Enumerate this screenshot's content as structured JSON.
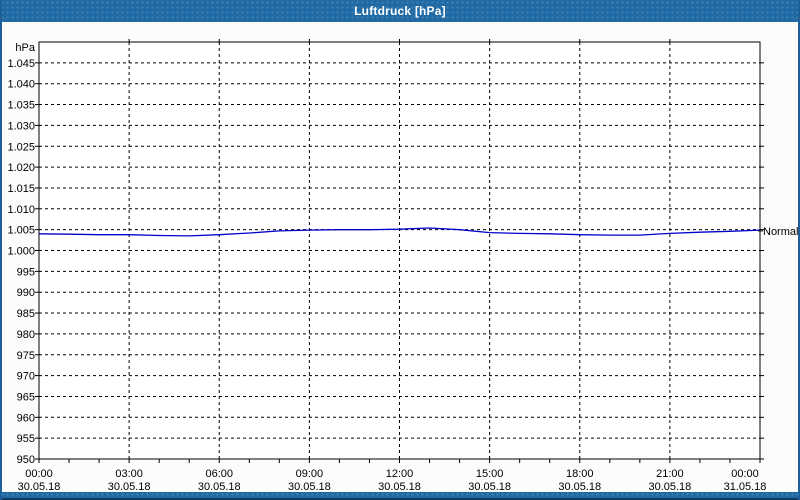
{
  "window": {
    "title": "Luftdruck [hPa]"
  },
  "colors": {
    "titlebar": "#1f6aa5",
    "window_border": "#1d5f98",
    "background": "#fcfdfa",
    "plot_bg": "#ffffff",
    "grid": "#000000",
    "text": "#000000",
    "title_text": "#ffffff",
    "line": "#0000cc"
  },
  "chart_data": {
    "type": "line",
    "title": "Luftdruck [hPa]",
    "ylabel": "hPa",
    "xlabel": "",
    "ylim": [
      950,
      1050
    ],
    "x_hours_range": [
      0,
      24
    ],
    "grid": "dashed",
    "legend_position": "right-annotation",
    "yticks": [
      {
        "v": 1045,
        "label": "1.045"
      },
      {
        "v": 1040,
        "label": "1.040"
      },
      {
        "v": 1035,
        "label": "1.035"
      },
      {
        "v": 1030,
        "label": "1.030"
      },
      {
        "v": 1025,
        "label": "1.025"
      },
      {
        "v": 1020,
        "label": "1.020"
      },
      {
        "v": 1015,
        "label": "1.015"
      },
      {
        "v": 1010,
        "label": "1.010"
      },
      {
        "v": 1005,
        "label": "1.005"
      },
      {
        "v": 1000,
        "label": "1.000"
      },
      {
        "v": 995,
        "label": "995"
      },
      {
        "v": 990,
        "label": "990"
      },
      {
        "v": 985,
        "label": "985"
      },
      {
        "v": 980,
        "label": "980"
      },
      {
        "v": 975,
        "label": "975"
      },
      {
        "v": 970,
        "label": "970"
      },
      {
        "v": 965,
        "label": "965"
      },
      {
        "v": 960,
        "label": "960"
      },
      {
        "v": 955,
        "label": "955"
      },
      {
        "v": 950,
        "label": "950"
      }
    ],
    "xticks": [
      {
        "h": 0,
        "time": "00:00",
        "date": "30.05.18"
      },
      {
        "h": 3,
        "time": "03:00",
        "date": "30.05.18"
      },
      {
        "h": 6,
        "time": "06:00",
        "date": "30.05.18"
      },
      {
        "h": 9,
        "time": "09:00",
        "date": "30.05.18"
      },
      {
        "h": 12,
        "time": "12:00",
        "date": "30.05.18"
      },
      {
        "h": 15,
        "time": "15:00",
        "date": "30.05.18"
      },
      {
        "h": 18,
        "time": "18:00",
        "date": "30.05.18"
      },
      {
        "h": 21,
        "time": "21:00",
        "date": "30.05.18"
      },
      {
        "h": 24,
        "time": "00:00",
        "date": "31.05.18"
      }
    ],
    "series": [
      {
        "name": "Luftdruck",
        "color": "#0000cc",
        "x_hours": [
          0,
          1,
          2,
          3,
          4,
          5,
          6,
          7,
          8,
          9,
          10,
          11,
          12,
          13,
          14,
          15,
          16,
          17,
          18,
          19,
          20,
          21,
          22,
          23,
          24
        ],
        "values": [
          1004.0,
          1003.9,
          1003.8,
          1003.8,
          1003.6,
          1003.5,
          1003.8,
          1004.2,
          1004.7,
          1004.9,
          1005.0,
          1005.0,
          1005.1,
          1005.4,
          1005.0,
          1004.3,
          1004.1,
          1004.0,
          1003.8,
          1003.7,
          1003.7,
          1004.1,
          1004.4,
          1004.6,
          1004.9
        ]
      }
    ],
    "annotation": {
      "label": "Normal",
      "value": 1004.7
    }
  }
}
